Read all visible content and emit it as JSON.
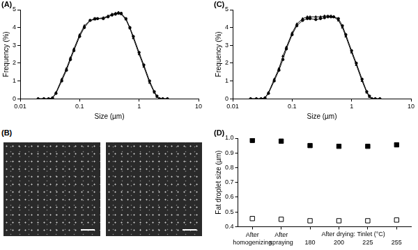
{
  "chart_data": [
    {
      "type": "line",
      "panel_label": "(A)",
      "x_label": "Size (µm)",
      "y_label": "Frequency (%)",
      "log": "x",
      "grid": false,
      "xlim": [
        0.01,
        10
      ],
      "xticks": [
        0.01,
        0.1,
        1,
        10
      ],
      "ylim": [
        0,
        5
      ],
      "yticks": [
        0,
        1,
        2,
        3,
        4,
        5
      ],
      "x": [
        0.02,
        0.025,
        0.03,
        0.035,
        0.04,
        0.05,
        0.06,
        0.07,
        0.08,
        0.1,
        0.12,
        0.15,
        0.18,
        0.2,
        0.25,
        0.3,
        0.35,
        0.4,
        0.45,
        0.5,
        0.6,
        0.7,
        0.8,
        1,
        1.2,
        1.5,
        1.8,
        2,
        2.2,
        2.5,
        3
      ],
      "series": [
        {
          "color": "#000000",
          "marker": "circle",
          "line_style": "solid",
          "values": [
            0,
            0,
            0,
            0.05,
            0.3,
            1.0,
            1.6,
            2.2,
            2.7,
            3.5,
            4.0,
            4.4,
            4.5,
            4.5,
            4.5,
            4.6,
            4.7,
            4.75,
            4.8,
            4.8,
            4.5,
            4.0,
            3.5,
            2.6,
            1.9,
            1.0,
            0.4,
            0.15,
            0,
            0,
            0
          ]
        },
        {
          "color": "#000000",
          "marker": "triangle",
          "line_style": "solid",
          "values": [
            0,
            0,
            0,
            0.05,
            0.35,
            1.1,
            1.7,
            2.3,
            2.8,
            3.6,
            4.1,
            4.4,
            4.45,
            4.5,
            4.55,
            4.65,
            4.75,
            4.8,
            4.85,
            4.75,
            4.45,
            3.95,
            3.4,
            2.5,
            1.8,
            0.9,
            0.35,
            0.1,
            0,
            0,
            0
          ]
        }
      ]
    },
    {
      "type": "line",
      "panel_label": "(C)",
      "x_label": "Size (µm)",
      "y_label": "Frequency (%)",
      "log": "x",
      "grid": false,
      "xlim": [
        0.01,
        10
      ],
      "xticks": [
        0.01,
        0.1,
        1,
        10
      ],
      "ylim": [
        0,
        5
      ],
      "yticks": [
        0,
        1,
        2,
        3,
        4,
        5
      ],
      "x": [
        0.02,
        0.025,
        0.03,
        0.035,
        0.04,
        0.05,
        0.06,
        0.07,
        0.08,
        0.1,
        0.12,
        0.15,
        0.18,
        0.2,
        0.25,
        0.3,
        0.35,
        0.4,
        0.45,
        0.5,
        0.6,
        0.7,
        0.8,
        1,
        1.2,
        1.5,
        1.8,
        2,
        2.2,
        2.5,
        3
      ],
      "series": [
        {
          "color": "#000000",
          "marker": "circle",
          "line_style": "solid",
          "values": [
            0,
            0,
            0,
            0.05,
            0.3,
            1.0,
            1.6,
            2.2,
            2.8,
            3.6,
            4.1,
            4.4,
            4.5,
            4.5,
            4.45,
            4.5,
            4.55,
            4.6,
            4.6,
            4.6,
            4.5,
            4.1,
            3.6,
            2.7,
            2.0,
            1.1,
            0.4,
            0.15,
            0,
            0,
            0
          ]
        },
        {
          "color": "#000000",
          "marker": "triangle",
          "line_style": "solid",
          "values": [
            0,
            0,
            0,
            0.05,
            0.35,
            1.1,
            1.7,
            2.4,
            2.9,
            3.7,
            4.2,
            4.5,
            4.6,
            4.6,
            4.6,
            4.6,
            4.65,
            4.65,
            4.65,
            4.6,
            4.4,
            4.0,
            3.5,
            2.6,
            1.9,
            1.0,
            0.35,
            0.1,
            0,
            0,
            0
          ]
        }
      ]
    },
    {
      "type": "scatter",
      "panel_label": "(D)",
      "y_label": "Fat droplet size (µm)",
      "grid": false,
      "categories": [
        "After homogenizing",
        "After spraying",
        "180",
        "200",
        "225",
        "255"
      ],
      "annotation": {
        "text": "After drying: Tinlet (°C)",
        "span": [
          "180",
          "255"
        ]
      },
      "ylim": [
        0.4,
        1.0
      ],
      "yticks": [
        0.4,
        0.5,
        0.6,
        0.7,
        0.8,
        0.9,
        {
          "value": 1,
          "label": "1.0"
        }
      ],
      "series": [
        {
          "color": "#000000",
          "marker": "filled_square",
          "values": [
            0.985,
            0.98,
            0.95,
            0.945,
            0.945,
            0.955
          ]
        },
        {
          "color": "#000000",
          "marker": "open_square",
          "values": [
            0.455,
            0.45,
            0.44,
            0.44,
            0.44,
            0.445
          ]
        }
      ]
    }
  ],
  "micrographs": {
    "panel_label": "(B)",
    "images": 2
  }
}
